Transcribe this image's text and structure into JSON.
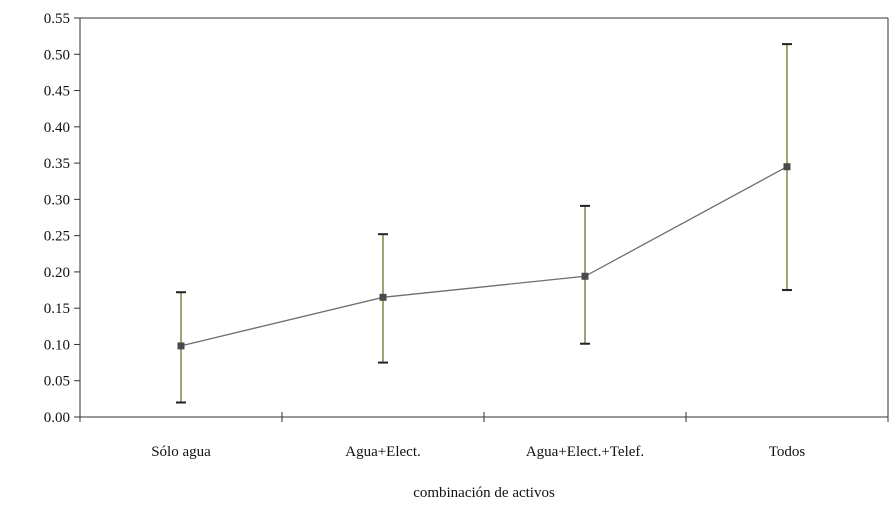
{
  "chart_data": {
    "type": "line",
    "title": "",
    "xlabel": "combinación de activos",
    "ylabel": "",
    "categories": [
      "Sólo agua",
      "Agua+Elect.",
      "Agua+Elect.+Telef.",
      "Todos"
    ],
    "series": [
      {
        "values": [
          0.098,
          0.165,
          0.194,
          0.345
        ],
        "error_low": [
          0.02,
          0.075,
          0.101,
          0.175
        ],
        "error_high": [
          0.172,
          0.252,
          0.291,
          0.514
        ]
      }
    ],
    "ylim": [
      0,
      0.55
    ],
    "yticks": [
      "0.00",
      "0.05",
      "0.10",
      "0.15",
      "0.20",
      "0.25",
      "0.30",
      "0.35",
      "0.40",
      "0.45",
      "0.50",
      "0.55"
    ],
    "grid": false,
    "legend": "none",
    "colors": {
      "line": "#6e6e6e",
      "marker": "#4a4a4a",
      "errorbar_stem": "#7a7a3a",
      "errorbar_cap": "#222222",
      "axis": "#333333",
      "background": "#ffffff"
    }
  }
}
